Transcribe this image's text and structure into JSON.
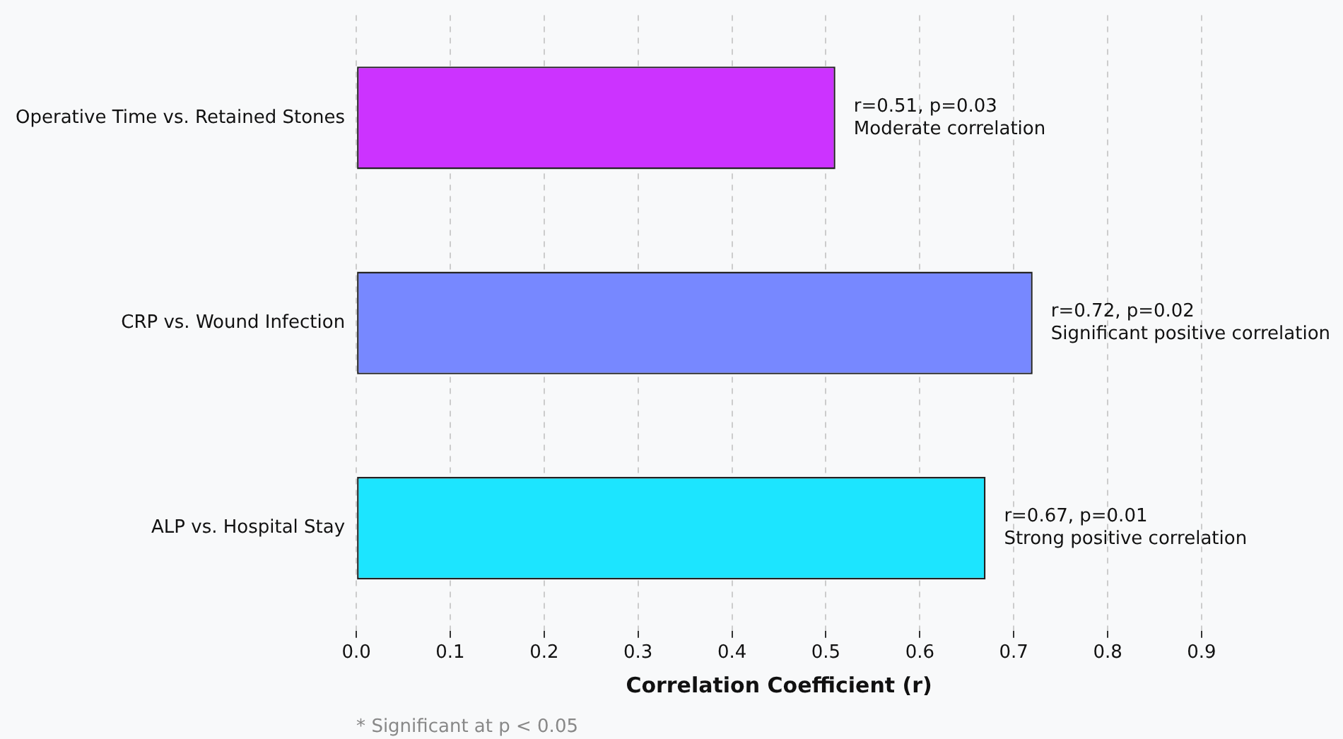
{
  "chart_data": {
    "type": "bar",
    "orientation": "horizontal",
    "categories": [
      "Operative Time vs. Retained Stones",
      "CRP vs. Wound Infection",
      "ALP vs. Hospital Stay"
    ],
    "values": [
      0.51,
      0.72,
      0.67
    ],
    "colors": [
      "#cc33ff",
      "#7788ff",
      "#1ce5ff"
    ],
    "xlabel": "Correlation Coefficient (r)",
    "xlim": [
      0,
      0.9
    ],
    "xticks": [
      {
        "value": 0,
        "label": "0.0"
      },
      0.1,
      0.2,
      0.3,
      0.4,
      0.5,
      0.6,
      0.7,
      0.8,
      0.9
    ],
    "grid": "x",
    "legend": false,
    "annotations": [
      {
        "text": "r=0.51, p=0.03\nModerate correlation",
        "x": 0.51,
        "y": "Operative Time vs. Retained Stones"
      },
      {
        "text": "r=0.72, p=0.02\nSignificant positive correlation",
        "x": 0.72,
        "y": "CRP vs. Wound Infection"
      },
      {
        "text": "r=0.67, p=0.01\nStrong positive correlation",
        "x": 0.67,
        "y": "ALP vs. Hospital Stay"
      },
      "* Significant at p < 0.05"
    ]
  }
}
